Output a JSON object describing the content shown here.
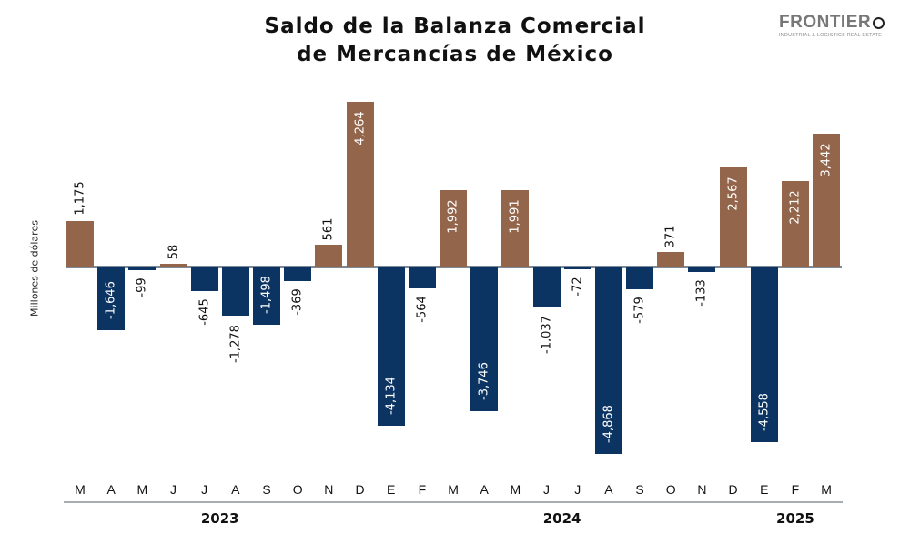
{
  "header": {
    "title_line1": "Saldo de la Balanza Comercial",
    "title_line2": "de Mercancías de México"
  },
  "logo": {
    "name": "FRONTIER",
    "tagline": "INDUSTRIAL & LOGISTICS REAL ESTATE"
  },
  "colors": {
    "positive": "#93654a",
    "negative": "#0c3463",
    "baseline": "#7f8a99"
  },
  "chart_data": {
    "type": "bar",
    "title": "Saldo de la Balanza Comercial de Mercancías de México",
    "xlabel": "",
    "ylabel": "Millones de dólares",
    "categories": [
      "M",
      "A",
      "M",
      "J",
      "J",
      "A",
      "S",
      "O",
      "N",
      "D",
      "E",
      "F",
      "M",
      "A",
      "M",
      "J",
      "J",
      "A",
      "S",
      "O",
      "N",
      "D",
      "E",
      "F",
      "M"
    ],
    "years": [
      {
        "label": "2023",
        "start": 0,
        "end": 9
      },
      {
        "label": "2024",
        "start": 10,
        "end": 21
      },
      {
        "label": "2025",
        "start": 22,
        "end": 24
      }
    ],
    "values": [
      1175,
      -1646,
      -99,
      58,
      -645,
      -1278,
      -1498,
      -369,
      561,
      4264,
      -4134,
      -564,
      1992,
      -3746,
      1991,
      -1037,
      -72,
      -4868,
      -579,
      371,
      -133,
      2567,
      -4558,
      2212,
      3442
    ],
    "labels": [
      "1,175",
      "-1,646",
      "-99",
      "58",
      "-645",
      "-1,278",
      "-1,498",
      "-369",
      "561",
      "4,264",
      "-4,134",
      "-564",
      "1,992",
      "-3,746",
      "1,991",
      "-1,037",
      "-72",
      "-4,868",
      "-579",
      "371",
      "-133",
      "2,567",
      "-4,558",
      "2,212",
      "3,442"
    ],
    "grid": false,
    "legend": "none"
  }
}
